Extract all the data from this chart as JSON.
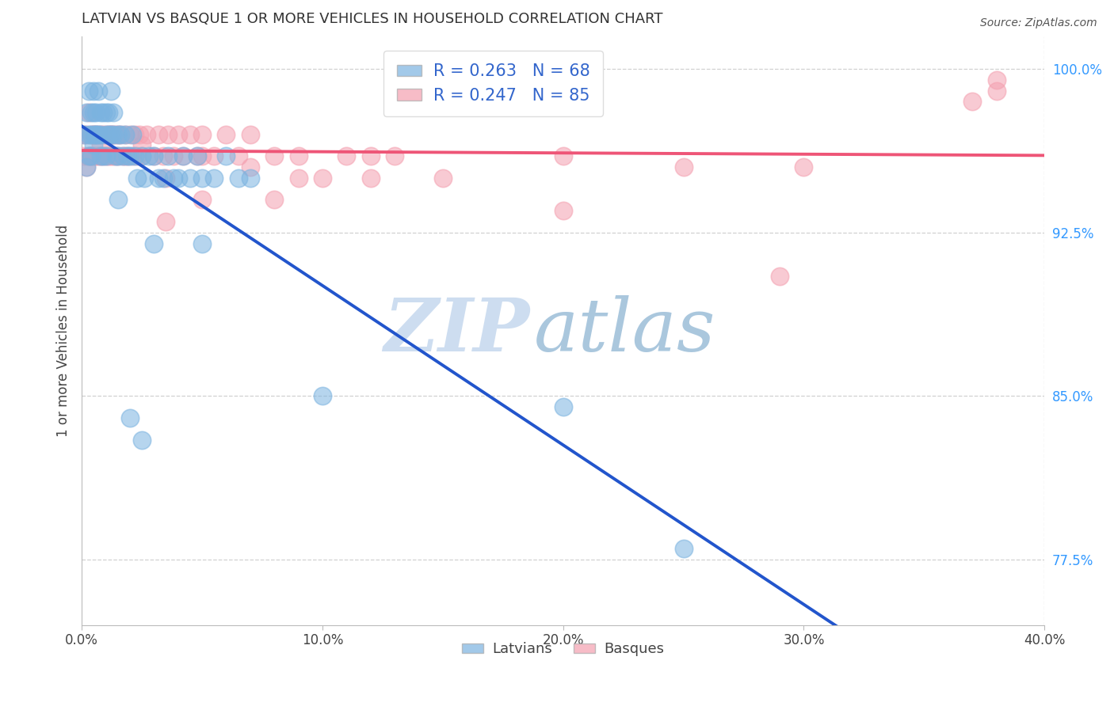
{
  "title": "LATVIAN VS BASQUE 1 OR MORE VEHICLES IN HOUSEHOLD CORRELATION CHART",
  "source": "Source: ZipAtlas.com",
  "ylabel": "1 or more Vehicles in Household",
  "xlim": [
    0.0,
    0.4
  ],
  "ylim": [
    0.745,
    1.015
  ],
  "yticks": [
    0.775,
    0.85,
    0.925,
    1.0
  ],
  "ytick_labels": [
    "77.5%",
    "85.0%",
    "92.5%",
    "100.0%"
  ],
  "xticks": [
    0.0,
    0.1,
    0.2,
    0.3,
    0.4
  ],
  "xtick_labels": [
    "0.0%",
    "10.0%",
    "20.0%",
    "30.0%",
    "40.0%"
  ],
  "latvian_color": "#7BB3E0",
  "basque_color": "#F4A0B0",
  "trend_latvian_color": "#2255CC",
  "trend_basque_color": "#EE5577",
  "latvian_R": 0.263,
  "latvian_N": 68,
  "basque_R": 0.247,
  "basque_N": 85,
  "legend_label_latvians": "Latvians",
  "legend_label_basques": "Basques",
  "watermark_zip": "ZIP",
  "watermark_atlas": "atlas",
  "latvian_x": [
    0.001,
    0.002,
    0.003,
    0.003,
    0.004,
    0.004,
    0.005,
    0.005,
    0.005,
    0.006,
    0.006,
    0.007,
    0.007,
    0.008,
    0.008,
    0.009,
    0.009,
    0.01,
    0.01,
    0.011,
    0.011,
    0.012,
    0.012,
    0.013,
    0.013,
    0.014,
    0.015,
    0.015,
    0.016,
    0.017,
    0.018,
    0.019,
    0.02,
    0.021,
    0.022,
    0.023,
    0.025,
    0.026,
    0.028,
    0.03,
    0.032,
    0.034,
    0.036,
    0.038,
    0.04,
    0.042,
    0.045,
    0.048,
    0.05,
    0.055,
    0.06,
    0.065,
    0.07,
    0.002,
    0.003,
    0.004,
    0.005,
    0.006,
    0.008,
    0.01,
    0.015,
    0.02,
    0.025,
    0.03,
    0.05,
    0.1,
    0.2,
    0.25
  ],
  "latvian_y": [
    0.97,
    0.98,
    0.99,
    0.97,
    0.98,
    0.96,
    0.99,
    0.98,
    0.97,
    0.98,
    0.97,
    0.99,
    0.97,
    0.98,
    0.97,
    0.96,
    0.98,
    0.98,
    0.97,
    0.98,
    0.97,
    0.99,
    0.97,
    0.98,
    0.97,
    0.96,
    0.97,
    0.96,
    0.97,
    0.96,
    0.97,
    0.96,
    0.96,
    0.97,
    0.96,
    0.95,
    0.96,
    0.95,
    0.96,
    0.96,
    0.95,
    0.95,
    0.96,
    0.95,
    0.95,
    0.96,
    0.95,
    0.96,
    0.95,
    0.95,
    0.96,
    0.95,
    0.95,
    0.955,
    0.96,
    0.97,
    0.965,
    0.97,
    0.96,
    0.96,
    0.94,
    0.84,
    0.83,
    0.92,
    0.92,
    0.85,
    0.845,
    0.78
  ],
  "basque_x": [
    0.001,
    0.001,
    0.002,
    0.003,
    0.003,
    0.004,
    0.004,
    0.005,
    0.005,
    0.006,
    0.006,
    0.007,
    0.007,
    0.008,
    0.008,
    0.009,
    0.009,
    0.01,
    0.01,
    0.011,
    0.011,
    0.012,
    0.012,
    0.013,
    0.013,
    0.014,
    0.014,
    0.015,
    0.015,
    0.016,
    0.017,
    0.018,
    0.019,
    0.02,
    0.021,
    0.022,
    0.023,
    0.024,
    0.025,
    0.027,
    0.03,
    0.032,
    0.034,
    0.036,
    0.038,
    0.04,
    0.042,
    0.045,
    0.048,
    0.05,
    0.055,
    0.06,
    0.065,
    0.07,
    0.08,
    0.09,
    0.1,
    0.11,
    0.12,
    0.13,
    0.002,
    0.003,
    0.005,
    0.008,
    0.012,
    0.018,
    0.025,
    0.035,
    0.05,
    0.07,
    0.09,
    0.12,
    0.15,
    0.2,
    0.25,
    0.3,
    0.37,
    0.38,
    0.05,
    0.08,
    0.035,
    0.2,
    0.29,
    0.38
  ],
  "basque_y": [
    0.97,
    0.96,
    0.97,
    0.98,
    0.96,
    0.97,
    0.96,
    0.97,
    0.96,
    0.97,
    0.96,
    0.97,
    0.96,
    0.97,
    0.96,
    0.97,
    0.96,
    0.97,
    0.96,
    0.97,
    0.96,
    0.97,
    0.96,
    0.97,
    0.96,
    0.97,
    0.96,
    0.97,
    0.96,
    0.97,
    0.96,
    0.97,
    0.96,
    0.97,
    0.96,
    0.97,
    0.96,
    0.97,
    0.96,
    0.97,
    0.96,
    0.97,
    0.96,
    0.97,
    0.96,
    0.97,
    0.96,
    0.97,
    0.96,
    0.97,
    0.96,
    0.97,
    0.96,
    0.97,
    0.96,
    0.96,
    0.95,
    0.96,
    0.95,
    0.96,
    0.955,
    0.96,
    0.97,
    0.965,
    0.97,
    0.96,
    0.965,
    0.95,
    0.96,
    0.955,
    0.95,
    0.96,
    0.95,
    0.96,
    0.955,
    0.955,
    0.985,
    0.99,
    0.94,
    0.94,
    0.93,
    0.935,
    0.905,
    0.995
  ]
}
